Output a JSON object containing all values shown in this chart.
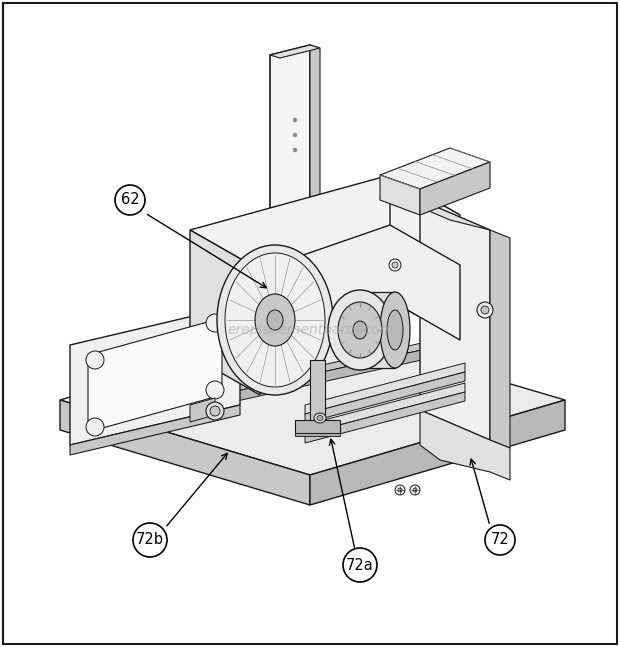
{
  "background_color": "#ffffff",
  "border_color": "#000000",
  "watermark_text": "ereplacementparts.com",
  "watermark_color": "#aaaaaa",
  "label_62": "62",
  "label_72": "72",
  "label_72a": "72a",
  "label_72b": "72b",
  "line_color": "#1a1a1a",
  "light_fill": "#f2f2f2",
  "mid_fill": "#e0e0e0",
  "dark_fill": "#c8c8c8",
  "darker_fill": "#b8b8b8",
  "fig_width": 6.2,
  "fig_height": 6.47,
  "dpi": 100
}
